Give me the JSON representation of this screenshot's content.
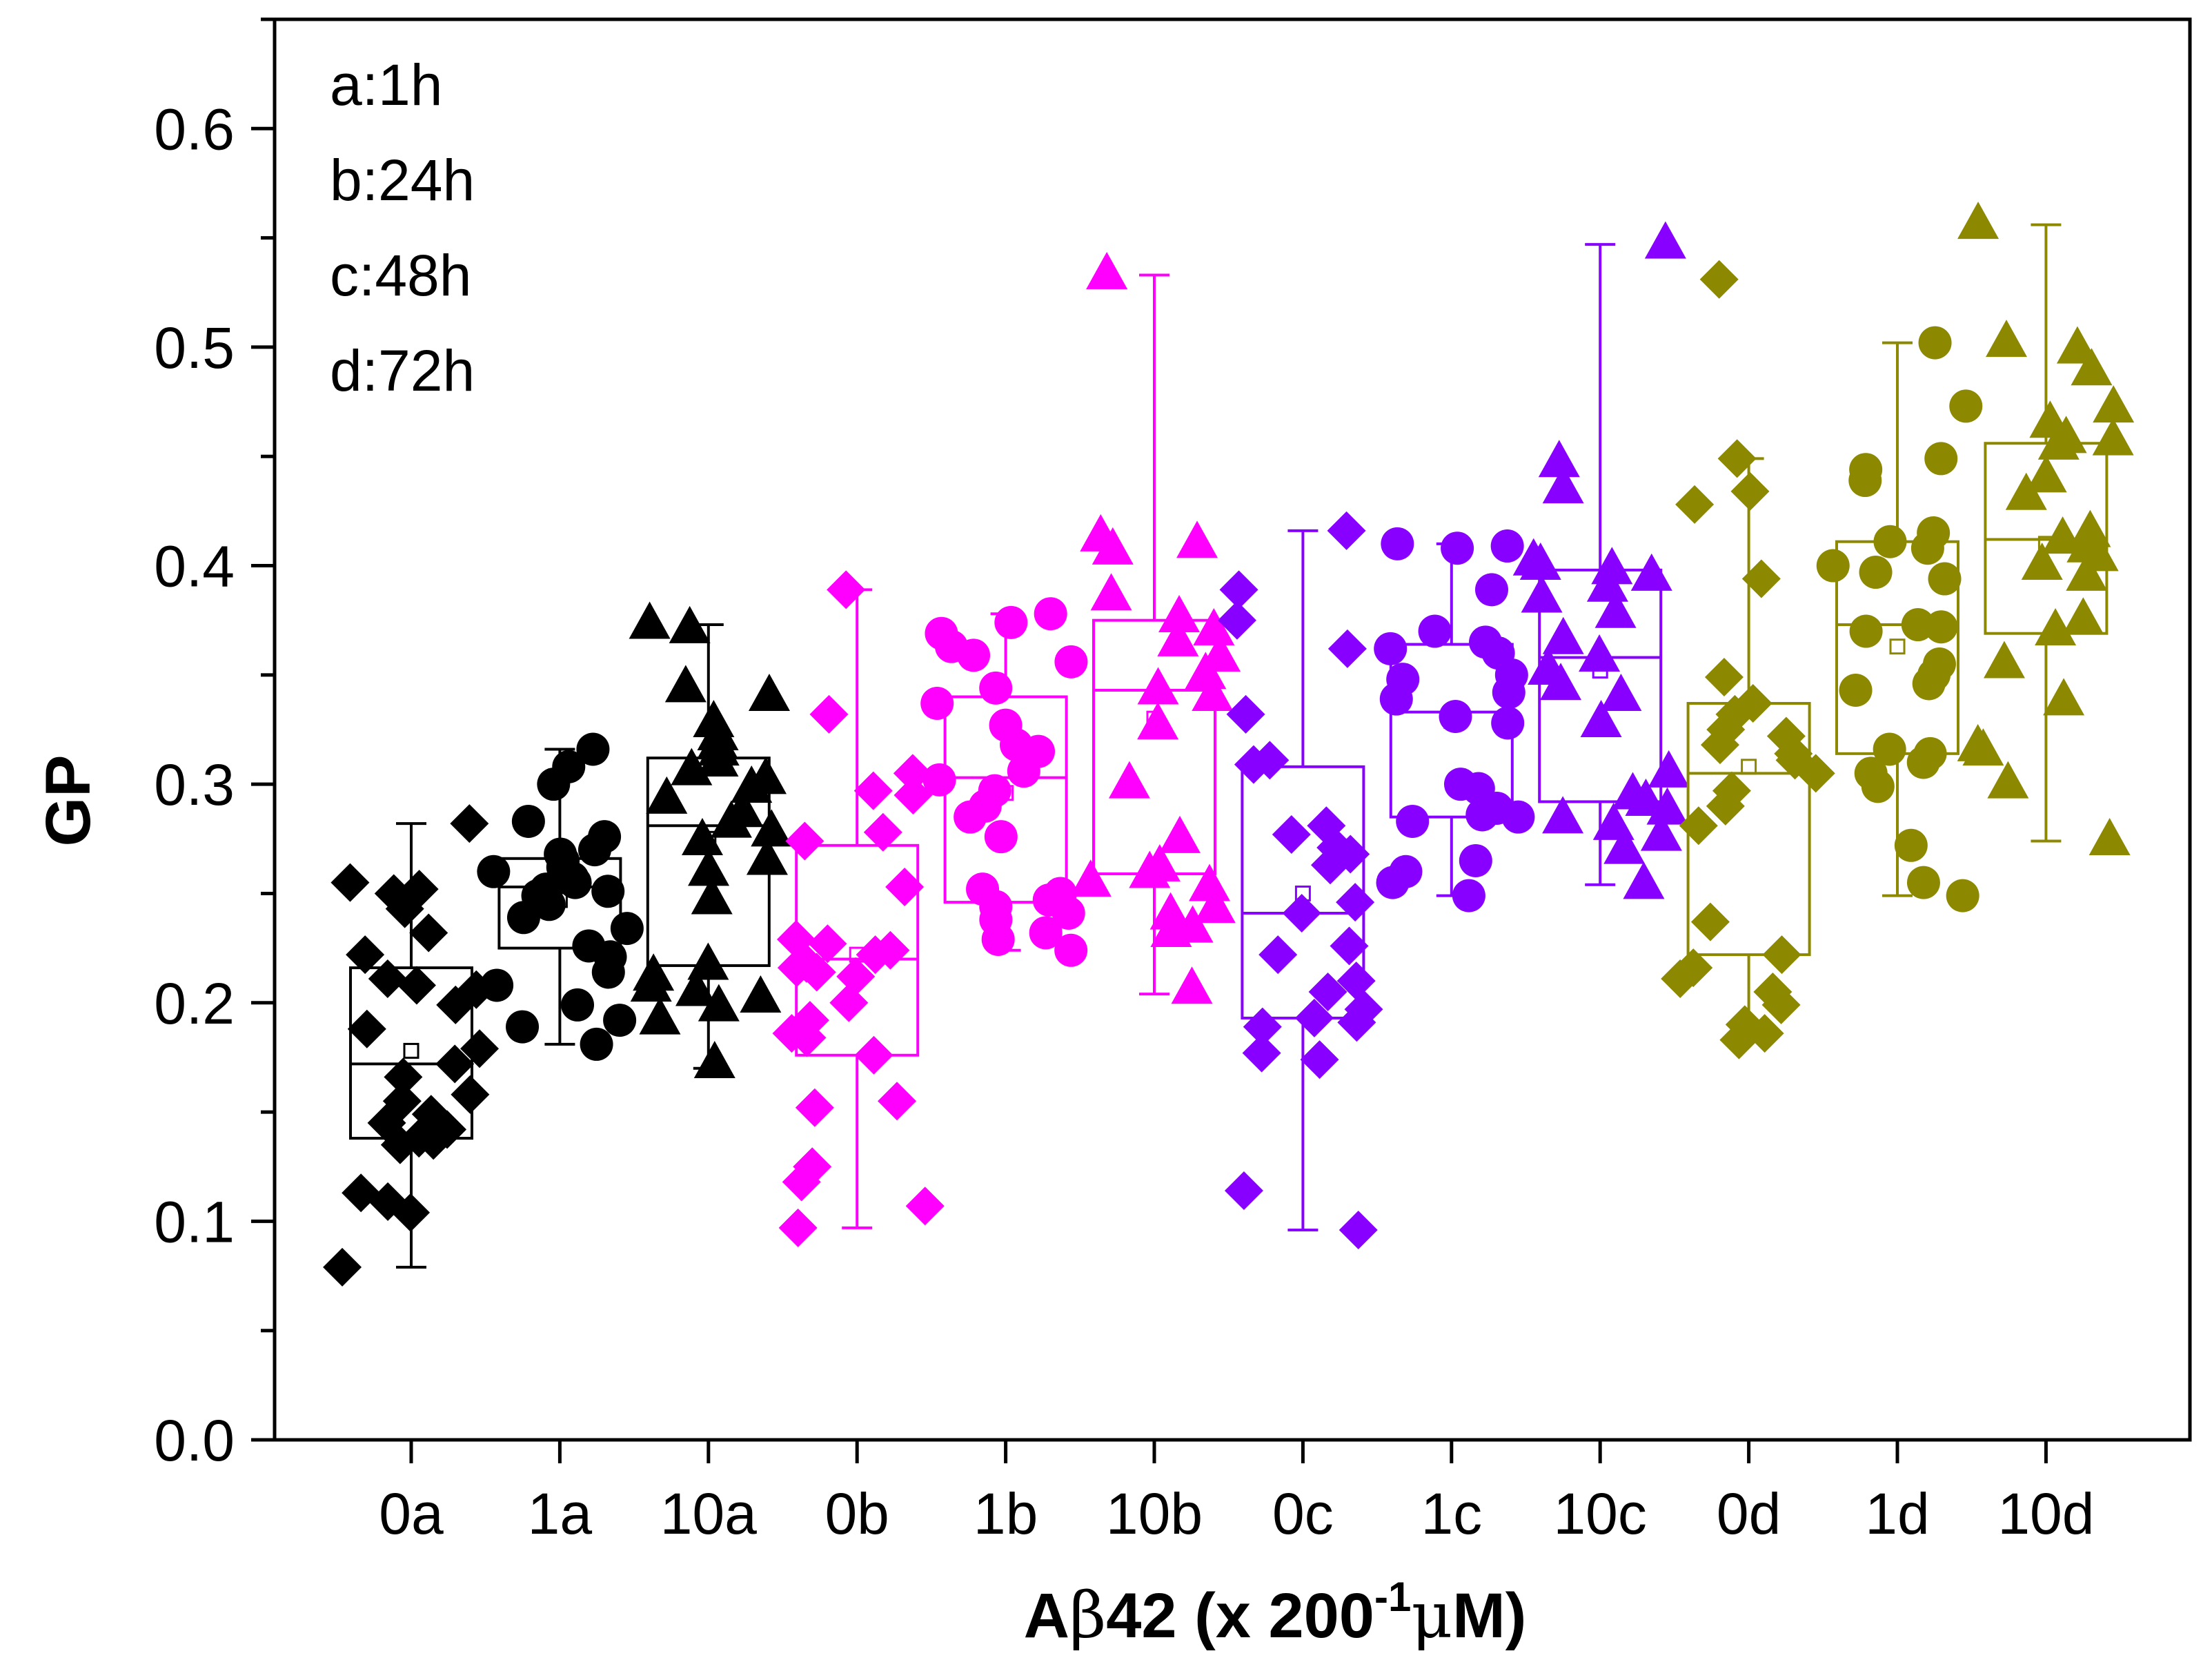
{
  "chart_data": {
    "type": "box",
    "title": "",
    "ylabel": "GP",
    "xlabel": {
      "prefix": "A",
      "beta": "β",
      "mid": "42 (x 200",
      "sup": "-1",
      "mu": "μ",
      "suffix": "M)"
    },
    "ylim": [
      0.0,
      0.65
    ],
    "yticks": [
      0.0,
      0.1,
      0.2,
      0.3,
      0.4,
      0.5,
      0.6
    ],
    "ytick_labels": [
      "0.0",
      "0.1",
      "0.2",
      "0.3",
      "0.4",
      "0.5",
      "0.6"
    ],
    "legend_position": "top-left",
    "legend_entries": [
      "a:1h",
      "b:24h",
      "c:48h",
      "d:72h"
    ],
    "categories": [
      "0a",
      "1a",
      "10a",
      "0b",
      "1b",
      "10b",
      "0c",
      "1c",
      "10c",
      "0d",
      "1d",
      "10d"
    ],
    "colors": {
      "a": "#000000",
      "b": "#ff00ff",
      "c": "#8800ff",
      "d": "#8c8800"
    },
    "series": [
      {
        "name": "0a",
        "group": "a",
        "marker": "diamond",
        "color": "#000000",
        "q1": 0.138,
        "median": 0.172,
        "q3": 0.216,
        "mean": 0.178,
        "whisker_low": 0.079,
        "whisker_high": 0.282,
        "points": [
          0.282,
          0.255,
          0.252,
          0.25,
          0.243,
          0.232,
          0.222,
          0.211,
          0.208,
          0.206,
          0.199,
          0.188,
          0.179,
          0.172,
          0.166,
          0.158,
          0.155,
          0.149,
          0.145,
          0.142,
          0.138,
          0.137,
          0.135,
          0.113,
          0.109,
          0.104,
          0.079
        ]
      },
      {
        "name": "1a",
        "group": "a",
        "marker": "circle",
        "color": "#000000",
        "q1": 0.225,
        "median": 0.253,
        "q3": 0.266,
        "mean": 0.247,
        "whisker_low": 0.181,
        "whisker_high": 0.316,
        "points": [
          0.316,
          0.308,
          0.3,
          0.283,
          0.276,
          0.27,
          0.268,
          0.265,
          0.262,
          0.26,
          0.257,
          0.255,
          0.252,
          0.251,
          0.249,
          0.245,
          0.239,
          0.234,
          0.226,
          0.221,
          0.214,
          0.208,
          0.199,
          0.192,
          0.189,
          0.181
        ]
      },
      {
        "name": "10a",
        "group": "a",
        "marker": "triangle",
        "color": "#000000",
        "q1": 0.217,
        "median": 0.281,
        "q3": 0.312,
        "mean": 0.275,
        "whisker_low": 0.17,
        "whisker_high": 0.373,
        "points": [
          0.373,
          0.371,
          0.344,
          0.34,
          0.328,
          0.322,
          0.318,
          0.315,
          0.31,
          0.306,
          0.302,
          0.298,
          0.293,
          0.287,
          0.282,
          0.278,
          0.274,
          0.265,
          0.26,
          0.247,
          0.217,
          0.212,
          0.207,
          0.205,
          0.202,
          0.198,
          0.192,
          0.172
        ]
      },
      {
        "name": "0b",
        "group": "b",
        "marker": "diamond",
        "color": "#ff00ff",
        "q1": 0.176,
        "median": 0.22,
        "q3": 0.272,
        "mean": 0.222,
        "whisker_low": 0.097,
        "whisker_high": 0.389,
        "points": [
          0.389,
          0.332,
          0.305,
          0.297,
          0.295,
          0.278,
          0.274,
          0.253,
          0.229,
          0.227,
          0.224,
          0.222,
          0.218,
          0.216,
          0.214,
          0.212,
          0.2,
          0.192,
          0.186,
          0.184,
          0.176,
          0.155,
          0.152,
          0.125,
          0.118,
          0.107,
          0.097
        ]
      },
      {
        "name": "1b",
        "group": "b",
        "marker": "circle",
        "color": "#ff00ff",
        "q1": 0.246,
        "median": 0.303,
        "q3": 0.34,
        "mean": 0.296,
        "whisker_low": 0.224,
        "whisker_high": 0.378,
        "points": [
          0.378,
          0.374,
          0.369,
          0.363,
          0.359,
          0.356,
          0.344,
          0.337,
          0.327,
          0.318,
          0.315,
          0.306,
          0.302,
          0.297,
          0.29,
          0.285,
          0.276,
          0.252,
          0.25,
          0.247,
          0.244,
          0.241,
          0.238,
          0.232,
          0.229,
          0.224
        ]
      },
      {
        "name": "10b",
        "group": "b",
        "marker": "triangle",
        "color": "#ff00ff",
        "q1": 0.259,
        "median": 0.343,
        "q3": 0.375,
        "mean": 0.33,
        "whisker_low": 0.204,
        "whisker_high": 0.533,
        "points": [
          0.533,
          0.413,
          0.41,
          0.407,
          0.386,
          0.376,
          0.37,
          0.365,
          0.358,
          0.35,
          0.343,
          0.34,
          0.327,
          0.3,
          0.275,
          0.262,
          0.259,
          0.255,
          0.253,
          0.243,
          0.24,
          0.234,
          0.232,
          0.206
        ]
      },
      {
        "name": "0c",
        "group": "c",
        "marker": "diamond",
        "color": "#8800ff",
        "q1": 0.193,
        "median": 0.241,
        "q3": 0.308,
        "mean": 0.25,
        "whisker_low": 0.096,
        "whisker_high": 0.416,
        "points": [
          0.416,
          0.389,
          0.375,
          0.362,
          0.332,
          0.311,
          0.309,
          0.281,
          0.277,
          0.271,
          0.268,
          0.263,
          0.246,
          0.241,
          0.226,
          0.222,
          0.21,
          0.205,
          0.197,
          0.193,
          0.191,
          0.189,
          0.177,
          0.174,
          0.114,
          0.096
        ]
      },
      {
        "name": "1c",
        "group": "c",
        "marker": "circle",
        "color": "#8800ff",
        "q1": 0.285,
        "median": 0.333,
        "q3": 0.364,
        "mean": 0.329,
        "whisker_low": 0.249,
        "whisker_high": 0.41,
        "points": [
          0.41,
          0.409,
          0.408,
          0.389,
          0.37,
          0.365,
          0.362,
          0.36,
          0.35,
          0.348,
          0.342,
          0.339,
          0.331,
          0.328,
          0.3,
          0.298,
          0.289,
          0.286,
          0.285,
          0.283,
          0.265,
          0.26,
          0.255,
          0.249
        ]
      },
      {
        "name": "10c",
        "group": "c",
        "marker": "triangle",
        "color": "#8800ff",
        "q1": 0.292,
        "median": 0.358,
        "q3": 0.398,
        "mean": 0.352,
        "whisker_low": 0.254,
        "whisker_high": 0.547,
        "points": [
          0.547,
          0.447,
          0.435,
          0.402,
          0.4,
          0.398,
          0.395,
          0.39,
          0.385,
          0.378,
          0.366,
          0.358,
          0.352,
          0.345,
          0.34,
          0.328,
          0.305,
          0.295,
          0.292,
          0.288,
          0.284,
          0.281,
          0.276,
          0.27,
          0.254
        ]
      },
      {
        "name": "0d",
        "group": "d",
        "marker": "diamond",
        "color": "#8c8800",
        "q1": 0.222,
        "median": 0.305,
        "q3": 0.337,
        "mean": 0.308,
        "whisker_low": 0.183,
        "whisker_high": 0.449,
        "points": [
          0.531,
          0.449,
          0.434,
          0.428,
          0.394,
          0.349,
          0.337,
          0.332,
          0.325,
          0.322,
          0.318,
          0.314,
          0.311,
          0.305,
          0.297,
          0.29,
          0.281,
          0.237,
          0.222,
          0.216,
          0.211,
          0.205,
          0.199,
          0.19,
          0.186,
          0.183
        ]
      },
      {
        "name": "1d",
        "group": "d",
        "marker": "circle",
        "color": "#8c8800",
        "q1": 0.314,
        "median": 0.373,
        "q3": 0.411,
        "mean": 0.363,
        "whisker_low": 0.249,
        "whisker_high": 0.502,
        "points": [
          0.502,
          0.473,
          0.449,
          0.444,
          0.439,
          0.415,
          0.411,
          0.408,
          0.4,
          0.397,
          0.394,
          0.373,
          0.372,
          0.37,
          0.355,
          0.35,
          0.346,
          0.343,
          0.316,
          0.314,
          0.31,
          0.305,
          0.299,
          0.272,
          0.255,
          0.249
        ]
      },
      {
        "name": "10d",
        "group": "d",
        "marker": "triangle",
        "color": "#8c8800",
        "q1": 0.369,
        "median": 0.412,
        "q3": 0.456,
        "mean": 0.41,
        "whisker_low": 0.274,
        "whisker_high": 0.556,
        "points": [
          0.556,
          0.502,
          0.499,
          0.489,
          0.472,
          0.465,
          0.458,
          0.457,
          0.455,
          0.44,
          0.432,
          0.415,
          0.412,
          0.408,
          0.404,
          0.4,
          0.395,
          0.375,
          0.37,
          0.355,
          0.338,
          0.317,
          0.315,
          0.3,
          0.274
        ]
      }
    ]
  }
}
